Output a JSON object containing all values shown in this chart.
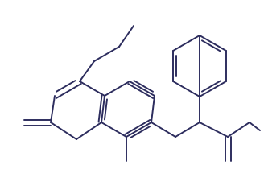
{
  "bg_color": "#ffffff",
  "line_color": "#2d2d5e",
  "line_width": 1.4,
  "fig_width": 3.28,
  "fig_height": 2.31,
  "dpi": 100,
  "xlim": [
    0,
    328
  ],
  "ylim": [
    0,
    231
  ]
}
